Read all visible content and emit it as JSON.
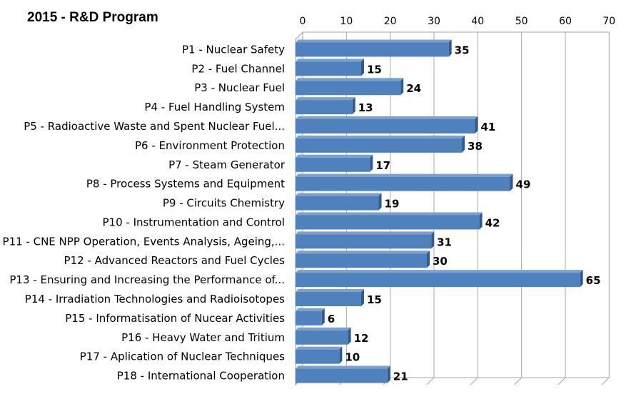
{
  "chart_data": {
    "type": "bar",
    "orientation": "horizontal",
    "title": "2015 - R&D Program",
    "xlabel": "",
    "ylabel": "",
    "xlim": [
      0,
      70
    ],
    "ticks": [
      0,
      10,
      20,
      30,
      40,
      50,
      60,
      70
    ],
    "grid": true,
    "legend": "none",
    "bar_color": "#4F81BD",
    "categories": [
      "P1 - Nuclear Safety",
      "P2 - Fuel Channel",
      "P3 - Nuclear Fuel",
      "P4 - Fuel Handling System",
      "P5 - Radioactive Waste and Spent Nuclear Fuel...",
      "P6 - Environment Protection",
      "P7 - Steam Generator",
      "P8 - Process Systems and Equipment",
      "P9 - Circuits Chemistry",
      "P10 - Instrumentation and Control",
      "P11 - CNE NPP Operation, Events Analysis, Ageing,...",
      "P12 - Advanced Reactors and Fuel Cycles",
      "P13 - Ensuring and Increasing the Performance of...",
      "P14 - Irradiation Technologies and Radioisotopes",
      "P15 - Informatisation of Nucear Activities",
      "P16 - Heavy Water and Tritium",
      "P17 - Aplication of Nuclear Techniques",
      "P18 - International Cooperation"
    ],
    "values": [
      35,
      15,
      24,
      13,
      41,
      38,
      17,
      49,
      19,
      42,
      31,
      30,
      65,
      15,
      6,
      12,
      10,
      21
    ]
  }
}
